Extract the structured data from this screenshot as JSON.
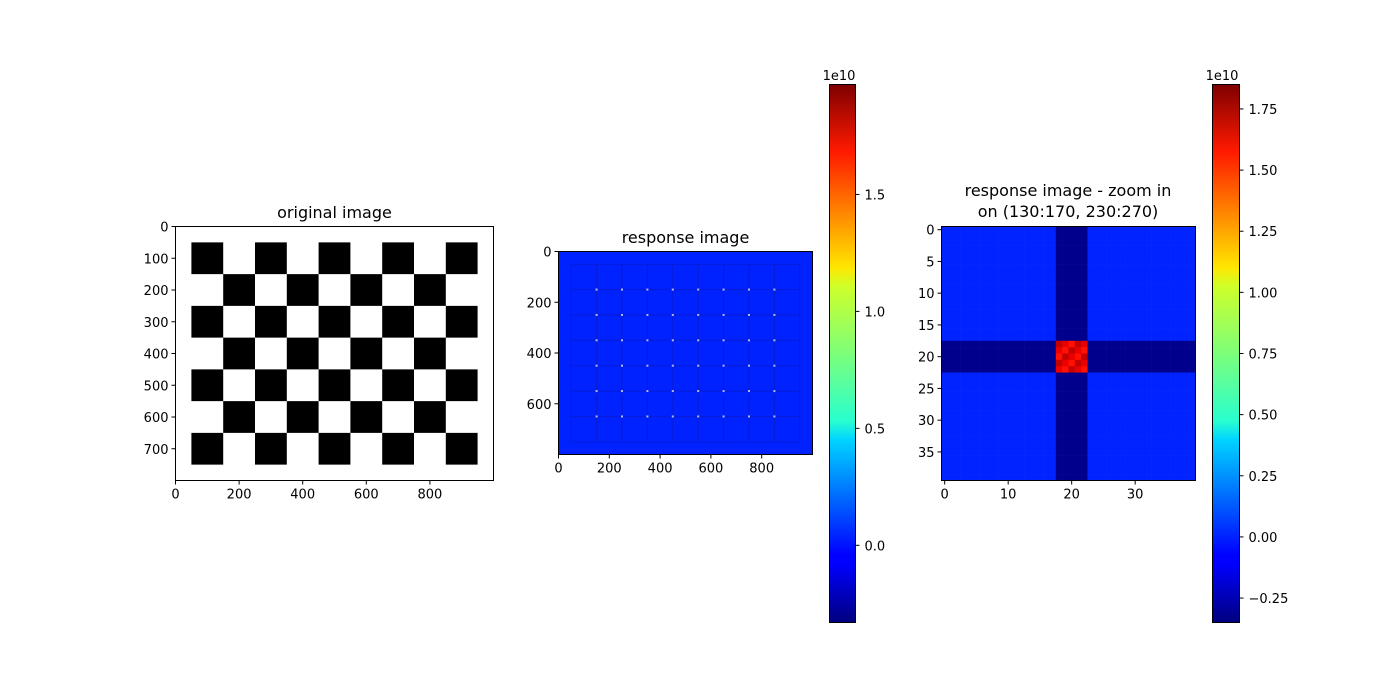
{
  "chart_data": [
    {
      "type": "heatmap",
      "title": "original image",
      "colormap": "gray",
      "checkerboard": {
        "rows": 7,
        "cols": 9,
        "square_size": 100,
        "margin": 50,
        "top_left": "black"
      },
      "extent": {
        "x": [
          0,
          1000
        ],
        "y": [
          0,
          800
        ]
      },
      "xticks": [
        0,
        200,
        400,
        600,
        800
      ],
      "yticks": [
        0,
        100,
        200,
        300,
        400,
        500,
        600,
        700
      ]
    },
    {
      "type": "heatmap",
      "title": "response image",
      "colormap": "jet",
      "background_value": 0.0,
      "extent": {
        "x": [
          0,
          1000
        ],
        "y": [
          0,
          800
        ]
      },
      "xticks": [
        0,
        200,
        400,
        600,
        800
      ],
      "yticks": [
        0,
        200,
        400,
        600
      ],
      "colorbar": {
        "min": -0.33,
        "max": 1.97,
        "ticks": [
          0.0,
          0.5,
          1.0,
          1.5
        ],
        "tick_labels": [
          "0.0",
          "0.5",
          "1.0",
          "1.5"
        ],
        "scale_label": "1e10"
      }
    },
    {
      "type": "heatmap",
      "title_line1": "response image - zoom in",
      "title_line2": "on (130:170, 230:270)",
      "colormap": "jet",
      "size": 40,
      "band_start": 18,
      "band_end": 22,
      "center_block": {
        "rows": [
          18,
          22
        ],
        "cols": [
          18,
          22
        ],
        "value": 1.7
      },
      "background_value": 0.0,
      "band_value": -0.32,
      "xticks": [
        0,
        10,
        20,
        30
      ],
      "yticks": [
        0,
        5,
        10,
        15,
        20,
        25,
        30,
        35
      ],
      "colorbar": {
        "min": -0.35,
        "max": 1.85,
        "ticks": [
          -0.25,
          0.0,
          0.25,
          0.5,
          0.75,
          1.0,
          1.25,
          1.5,
          1.75
        ],
        "tick_labels": [
          "−0.25",
          "0.00",
          "0.25",
          "0.50",
          "0.75",
          "1.00",
          "1.25",
          "1.50",
          "1.75"
        ],
        "scale_label": "1e10"
      }
    }
  ]
}
